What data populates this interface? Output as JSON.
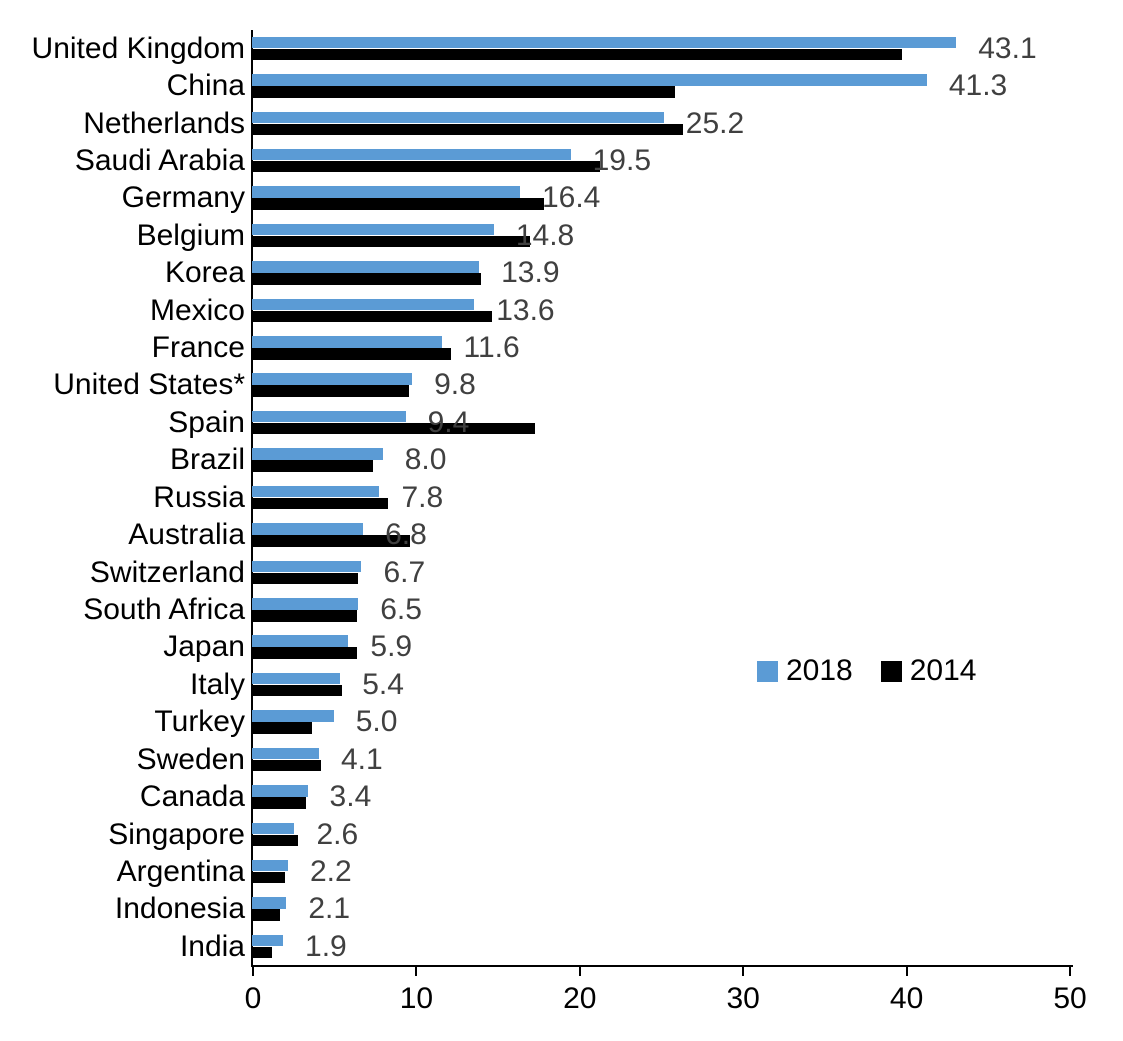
{
  "chart_data": {
    "type": "bar",
    "orientation": "horizontal",
    "title": "",
    "xlabel": "",
    "ylabel": "",
    "grid": false,
    "xlim": [
      0,
      50
    ],
    "x_ticks": [
      "0",
      "10",
      "20",
      "30",
      "40",
      "50"
    ],
    "legend_position": "middle-right",
    "categories": [
      "United Kingdom",
      "China",
      "Netherlands",
      "Saudi Arabia",
      "Germany",
      "Belgium",
      "Korea",
      "Mexico",
      "France",
      "United States*",
      "Spain",
      "Brazil",
      "Russia",
      "Australia",
      "Switzerland",
      "South Africa",
      "Japan",
      "Italy",
      "Turkey",
      "Sweden",
      "Canada",
      "Singapore",
      "Argentina",
      "Indonesia",
      "India"
    ],
    "series": [
      {
        "name": "2018",
        "color": "#5B9BD5",
        "values": [
          43.1,
          41.3,
          25.2,
          19.5,
          16.4,
          14.8,
          13.9,
          13.6,
          11.6,
          9.8,
          9.4,
          8.0,
          7.8,
          6.8,
          6.7,
          6.5,
          5.9,
          5.4,
          5.0,
          4.1,
          3.4,
          2.6,
          2.2,
          2.1,
          1.9
        ]
      },
      {
        "name": "2014",
        "color": "#000000",
        "values": [
          39.8,
          25.9,
          26.4,
          21.3,
          17.9,
          17.0,
          14.0,
          14.7,
          12.2,
          9.6,
          17.3,
          7.4,
          8.3,
          9.7,
          6.5,
          6.4,
          6.4,
          5.5,
          3.7,
          4.2,
          3.3,
          2.8,
          2.0,
          1.7,
          1.2
        ]
      }
    ],
    "data_labels": {
      "attached_series": "2018",
      "labels": [
        "43.1",
        "41.3",
        "25.2",
        "19.5",
        "16.4",
        "14.8",
        "13.9",
        "13.6",
        "11.6",
        "9.8",
        "9.4",
        "8.0",
        "7.8",
        "6.8",
        "6.7",
        "6.5",
        "5.9",
        "5.4",
        "5.0",
        "4.1",
        "3.4",
        "2.6",
        "2.2",
        "2.1",
        "1.9"
      ],
      "color": "#404040"
    }
  }
}
